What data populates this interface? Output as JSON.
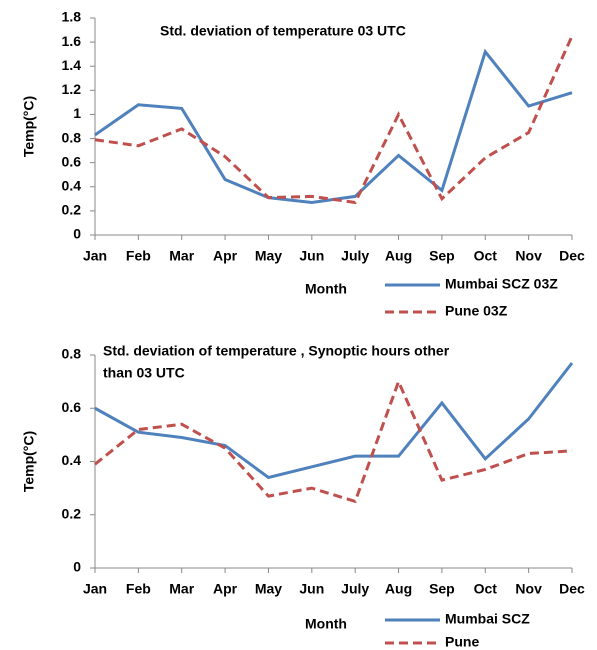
{
  "chart_data": [
    {
      "type": "line",
      "title": [
        "Std. deviation of temperature 03  UTC"
      ],
      "x_label": "Month",
      "y_label": "Temp(°C)",
      "categories": [
        "Jan",
        "Feb",
        "Mar",
        "Apr",
        "May",
        "Jun",
        "July",
        "Aug",
        "Sep",
        "Oct",
        "Nov",
        "Dec"
      ],
      "series": [
        {
          "name": "Mumbai SCZ 03Z",
          "color": "#4f81bd",
          "dash": false,
          "values": [
            0.83,
            1.08,
            1.05,
            0.46,
            0.31,
            0.27,
            0.32,
            0.66,
            0.37,
            1.52,
            1.07,
            1.18
          ]
        },
        {
          "name": "Pune 03Z",
          "color": "#c0504d",
          "dash": true,
          "values": [
            0.79,
            0.74,
            0.88,
            0.65,
            0.31,
            0.32,
            0.27,
            1.0,
            0.3,
            0.64,
            0.85,
            1.65
          ]
        }
      ],
      "ylim": [
        0,
        1.8
      ],
      "yticks": [
        0,
        0.2,
        0.4,
        0.6,
        0.8,
        1,
        1.2,
        1.4,
        1.6,
        1.8
      ],
      "grid": false,
      "legend": "bottom-right"
    },
    {
      "type": "line",
      "title": [
        "Std. deviation of temperature , Synoptic hours other",
        "than 03 UTC"
      ],
      "x_label": "Month",
      "y_label": "Temp(°C)",
      "categories": [
        "Jan",
        "Feb",
        "Mar",
        "Apr",
        "May",
        "Jun",
        "July",
        "Aug",
        "Sep",
        "Oct",
        "Nov",
        "Dec"
      ],
      "series": [
        {
          "name": "Mumbai SCZ",
          "color": "#4f81bd",
          "dash": false,
          "values": [
            0.6,
            0.51,
            0.49,
            0.46,
            0.34,
            0.38,
            0.42,
            0.42,
            0.62,
            0.41,
            0.56,
            0.77
          ]
        },
        {
          "name": "Pune",
          "color": "#c0504d",
          "dash": true,
          "values": [
            0.39,
            0.52,
            0.54,
            0.45,
            0.27,
            0.3,
            0.25,
            0.7,
            0.33,
            0.37,
            0.43,
            0.44
          ]
        }
      ],
      "ylim": [
        0,
        0.8
      ],
      "yticks": [
        0,
        0.2,
        0.4,
        0.6,
        0.8
      ],
      "grid": false,
      "legend": "bottom-right"
    }
  ]
}
